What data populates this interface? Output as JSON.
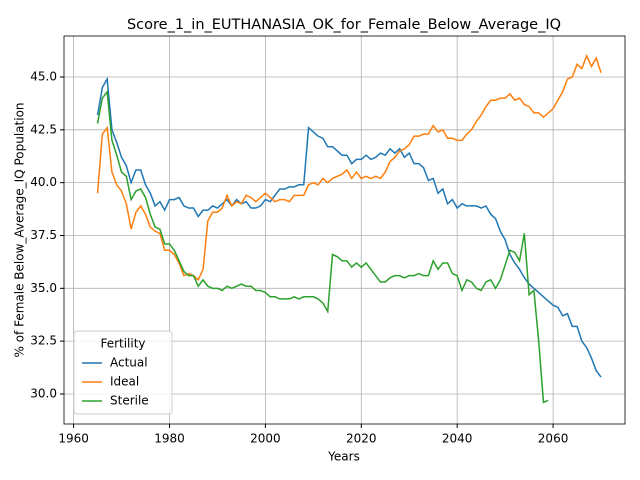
{
  "chart_data": {
    "type": "line",
    "title": "Score_1_in_EUTHANASIA_OK_for_Female_Below_Average_IQ",
    "x_label": "Years",
    "y_label": "% of Female Below_Average_IQ Population",
    "legend_title": "Fertility",
    "legend": "lower left",
    "grid": true,
    "x": [
      1965,
      1966,
      1967,
      1968,
      1969,
      1970,
      1971,
      1972,
      1973,
      1974,
      1975,
      1976,
      1977,
      1978,
      1979,
      1980,
      1981,
      1982,
      1983,
      1984,
      1985,
      1986,
      1987,
      1988,
      1989,
      1990,
      1991,
      1992,
      1993,
      1994,
      1995,
      1996,
      1997,
      1998,
      1999,
      2000,
      2001,
      2002,
      2003,
      2004,
      2005,
      2006,
      2007,
      2008,
      2009,
      2010,
      2011,
      2012,
      2013,
      2014,
      2015,
      2016,
      2017,
      2018,
      2019,
      2020,
      2021,
      2022,
      2023,
      2024,
      2025,
      2026,
      2027,
      2028,
      2029,
      2030,
      2031,
      2032,
      2033,
      2034,
      2035,
      2036,
      2037,
      2038,
      2039,
      2040,
      2041,
      2042,
      2043,
      2044,
      2045,
      2046,
      2047,
      2048,
      2049,
      2050,
      2051,
      2052,
      2053,
      2054,
      2055,
      2056,
      2057,
      2058,
      2059,
      2060,
      2061,
      2062,
      2063,
      2064,
      2065,
      2066,
      2067,
      2068,
      2069,
      2070
    ],
    "series": [
      {
        "name": "Actual",
        "color": "#1f77b4",
        "values": [
          43.2,
          44.5,
          44.9,
          42.5,
          41.9,
          41.2,
          40.8,
          40.0,
          40.6,
          40.6,
          39.9,
          39.5,
          38.9,
          39.1,
          38.7,
          39.2,
          39.2,
          39.3,
          38.9,
          38.8,
          38.8,
          38.4,
          38.7,
          38.7,
          38.9,
          38.8,
          39.0,
          39.2,
          38.9,
          39.2,
          39.0,
          39.1,
          38.8,
          38.8,
          38.9,
          39.2,
          39.1,
          39.4,
          39.7,
          39.7,
          39.8,
          39.8,
          39.9,
          39.9,
          42.6,
          42.4,
          42.2,
          42.1,
          41.7,
          41.7,
          41.5,
          41.3,
          41.3,
          40.9,
          41.1,
          41.1,
          41.3,
          41.1,
          41.2,
          41.4,
          41.3,
          41.6,
          41.4,
          41.6,
          41.2,
          41.4,
          40.9,
          40.9,
          40.7,
          40.1,
          40.2,
          39.5,
          39.7,
          39.0,
          39.2,
          38.8,
          39.0,
          38.9,
          38.9,
          38.9,
          38.8,
          38.9,
          38.5,
          38.3,
          37.7,
          37.3,
          36.6,
          36.2,
          35.9,
          35.5,
          35.2,
          35.0,
          34.8,
          34.6,
          34.4,
          34.2,
          34.1,
          33.7,
          33.8,
          33.2,
          33.2,
          32.5,
          32.2,
          31.7,
          31.1,
          30.8
        ]
      },
      {
        "name": "Ideal",
        "color": "#ff7f0e",
        "values": [
          39.5,
          42.3,
          42.6,
          40.5,
          39.9,
          39.6,
          39.0,
          37.8,
          38.6,
          38.9,
          38.5,
          37.9,
          37.7,
          37.6,
          36.8,
          36.8,
          36.6,
          36.2,
          35.6,
          35.7,
          35.6,
          35.4,
          35.9,
          38.2,
          38.6,
          38.6,
          38.8,
          39.4,
          38.9,
          39.1,
          39.0,
          39.4,
          39.3,
          39.1,
          39.3,
          39.5,
          39.3,
          39.1,
          39.2,
          39.2,
          39.1,
          39.4,
          39.4,
          39.4,
          39.9,
          40.0,
          39.9,
          40.2,
          40.0,
          40.2,
          40.3,
          40.4,
          40.6,
          40.2,
          40.5,
          40.2,
          40.3,
          40.2,
          40.3,
          40.2,
          40.5,
          41.0,
          41.2,
          41.5,
          41.6,
          41.8,
          42.2,
          42.2,
          42.3,
          42.3,
          42.7,
          42.4,
          42.5,
          42.1,
          42.1,
          42.0,
          42.0,
          42.3,
          42.5,
          42.9,
          43.2,
          43.6,
          43.9,
          43.9,
          44.0,
          44.0,
          44.2,
          43.9,
          44.0,
          43.7,
          43.6,
          43.3,
          43.3,
          43.1,
          43.3,
          43.5,
          43.9,
          44.3,
          44.9,
          45.0,
          45.6,
          45.4,
          46.0,
          45.5,
          45.9,
          45.2
        ]
      },
      {
        "name": "Sterile",
        "color": "#2ca02c",
        "values": [
          42.8,
          44.0,
          44.3,
          42.0,
          41.3,
          40.5,
          40.3,
          39.2,
          39.6,
          39.7,
          39.3,
          38.5,
          37.9,
          37.8,
          37.1,
          37.1,
          36.8,
          36.3,
          35.8,
          35.6,
          35.6,
          35.1,
          35.4,
          35.1,
          35.0,
          35.0,
          34.9,
          35.1,
          35.0,
          35.1,
          35.2,
          35.1,
          35.1,
          34.9,
          34.9,
          34.8,
          34.6,
          34.6,
          34.5,
          34.5,
          34.5,
          34.6,
          34.5,
          34.6,
          34.6,
          34.6,
          34.5,
          34.3,
          33.9,
          36.6,
          36.5,
          36.3,
          36.3,
          36.0,
          36.2,
          36.0,
          36.2,
          35.9,
          35.6,
          35.3,
          35.3,
          35.5,
          35.6,
          35.6,
          35.5,
          35.6,
          35.6,
          35.7,
          35.6,
          35.6,
          36.3,
          35.9,
          36.2,
          36.2,
          35.7,
          35.6,
          34.9,
          35.4,
          35.3,
          35.0,
          34.9,
          35.3,
          35.4,
          35.0,
          35.4,
          36.1,
          36.8,
          36.7,
          36.3,
          37.6,
          34.7,
          34.9,
          32.5,
          29.6,
          29.7,
          null,
          null,
          null,
          null,
          null,
          null,
          null,
          null,
          null,
          null,
          null
        ]
      }
    ],
    "xlim": [
      1958,
      2075
    ],
    "ylim": [
      28.58,
      46.94
    ],
    "xticks": [
      1960,
      1980,
      2000,
      2020,
      2040,
      2060
    ],
    "yticks": [
      {
        "value": 30,
        "label": "30.0"
      },
      {
        "value": 32.5,
        "label": "32.5"
      },
      {
        "value": 35,
        "label": "35.0"
      },
      {
        "value": 37.5,
        "label": "37.5"
      },
      {
        "value": 40,
        "label": "40.0"
      },
      {
        "value": 42.5,
        "label": "42.5"
      },
      {
        "value": 45,
        "label": "45.0"
      }
    ]
  }
}
